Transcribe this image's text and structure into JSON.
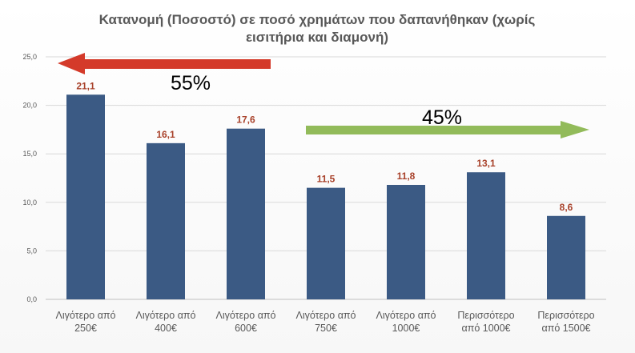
{
  "chart_data": {
    "type": "bar",
    "title_lines": [
      "Κατανομή (Ποσοστό) σε ποσό χρημάτων που δαπανήθηκαν (χωρίς",
      "εισιτήρια και διαμονή)"
    ],
    "categories": [
      [
        "Λιγότερο από",
        "250€"
      ],
      [
        "Λιγότερο από",
        "400€"
      ],
      [
        "Λιγότερο από",
        "600€"
      ],
      [
        "Λιγότερο από",
        "750€"
      ],
      [
        "Λιγότερο από",
        "1000€"
      ],
      [
        "Περισσότερο",
        "από 1000€"
      ],
      [
        "Περισσότερο",
        "από 1500€"
      ]
    ],
    "values": [
      21.1,
      16.1,
      17.6,
      11.5,
      11.8,
      13.1,
      8.6
    ],
    "value_labels": [
      "21,1",
      "16,1",
      "17,6",
      "11,5",
      "11,8",
      "13,1",
      "8,6"
    ],
    "ylim": [
      0,
      25
    ],
    "y_ticks": [
      0,
      5,
      10,
      15,
      20,
      25
    ],
    "y_tick_labels": [
      "0,0",
      "5,0",
      "10,0",
      "15,0",
      "20,0",
      "25,0"
    ],
    "grid": true,
    "bar_color": "#3b5a84",
    "annotations": [
      {
        "text": "55%",
        "arrow_direction": "left",
        "arrow_color": "#d43a2a"
      },
      {
        "text": "45%",
        "arrow_direction": "right",
        "arrow_color": "#92bb5a"
      }
    ]
  }
}
